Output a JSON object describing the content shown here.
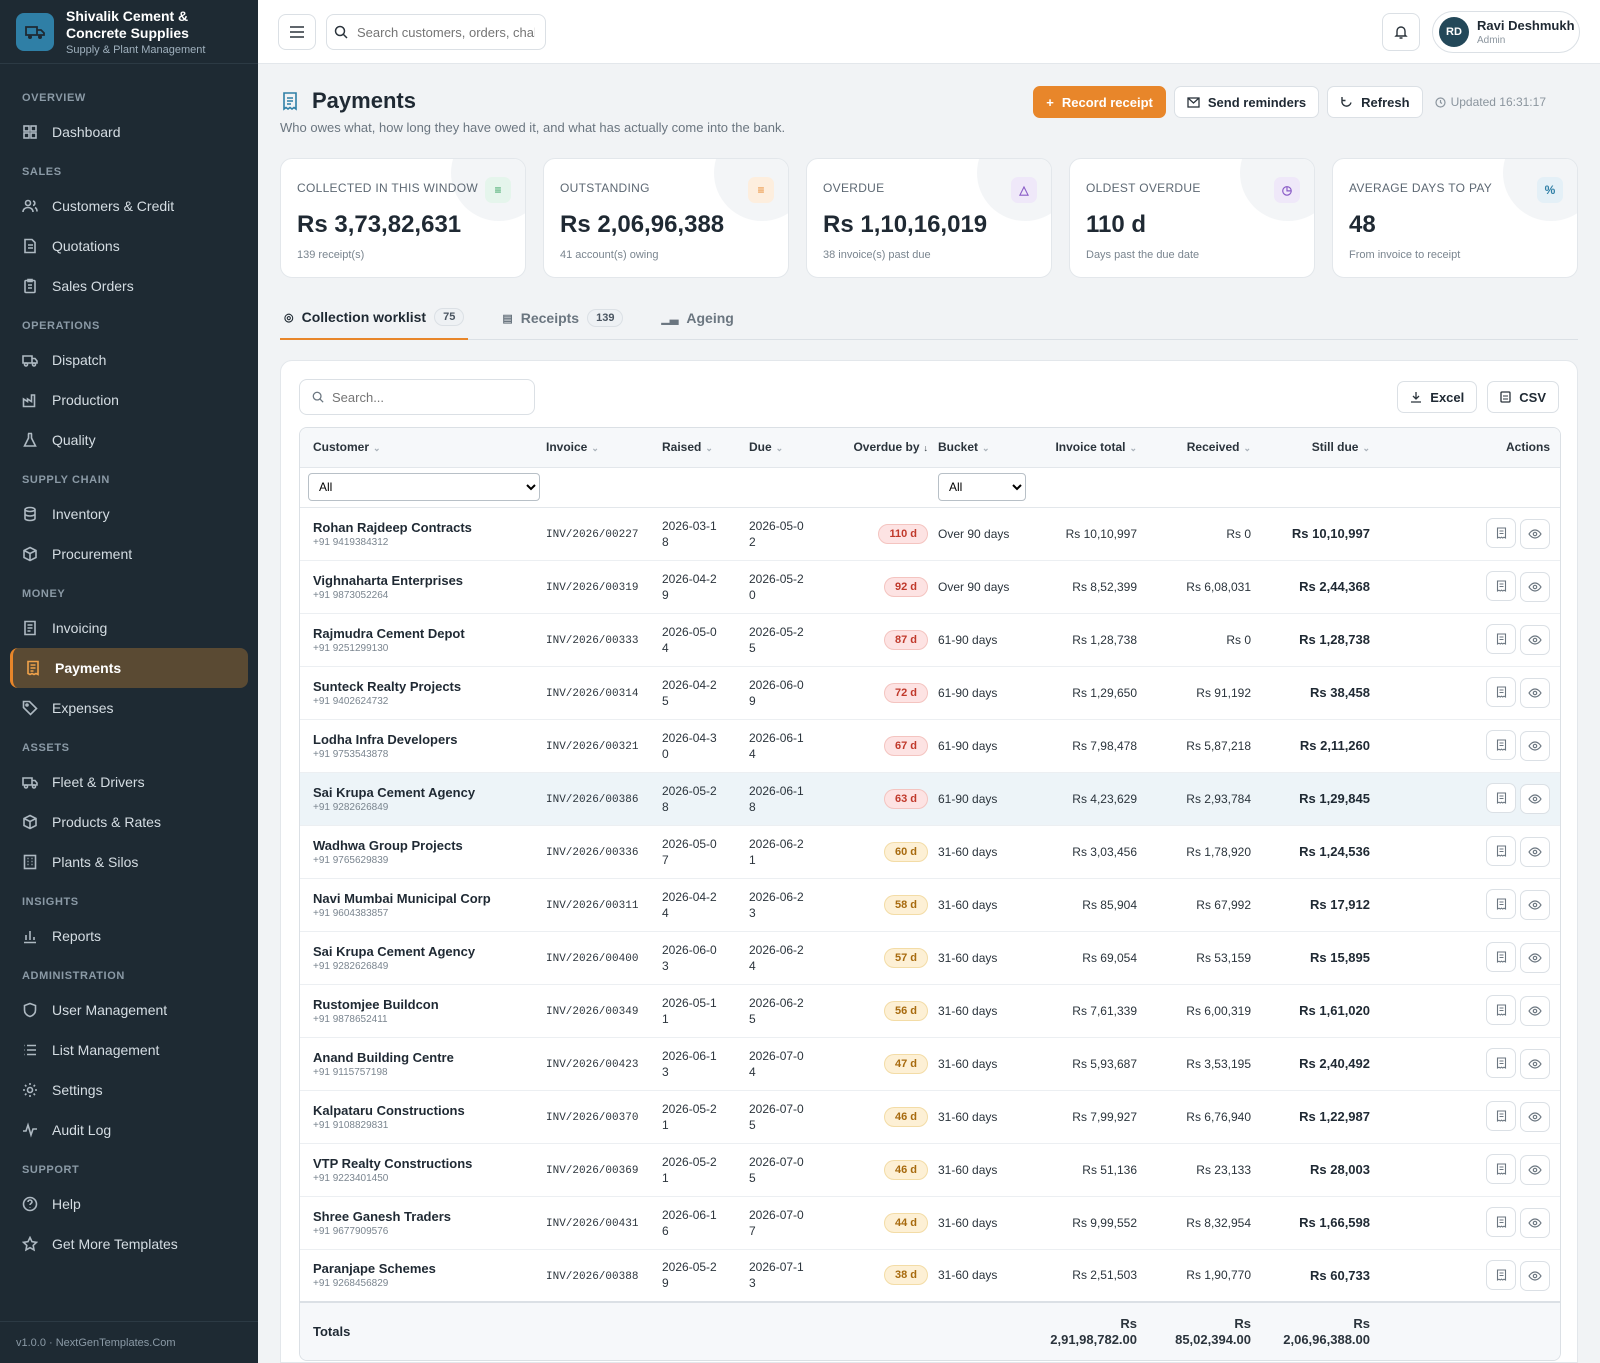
{
  "brand": {
    "name": "Shivalik Cement & Concrete Supplies",
    "tagline": "Supply & Plant Management"
  },
  "sidebar": [
    {
      "section": "OVERVIEW",
      "items": [
        {
          "label": "Dashboard",
          "icon": "dashboard-icon"
        }
      ]
    },
    {
      "section": "SALES",
      "items": [
        {
          "label": "Customers & Credit",
          "icon": "users-icon"
        },
        {
          "label": "Quotations",
          "icon": "document-icon"
        },
        {
          "label": "Sales Orders",
          "icon": "clipboard-icon"
        }
      ]
    },
    {
      "section": "OPERATIONS",
      "items": [
        {
          "label": "Dispatch",
          "icon": "truck-icon"
        },
        {
          "label": "Production",
          "icon": "factory-icon"
        },
        {
          "label": "Quality",
          "icon": "flask-icon"
        }
      ]
    },
    {
      "section": "SUPPLY CHAIN",
      "items": [
        {
          "label": "Inventory",
          "icon": "database-icon"
        },
        {
          "label": "Procurement",
          "icon": "box-icon"
        }
      ]
    },
    {
      "section": "MONEY",
      "items": [
        {
          "label": "Invoicing",
          "icon": "invoice-icon"
        },
        {
          "label": "Payments",
          "icon": "receipt-icon",
          "active": true
        },
        {
          "label": "Expenses",
          "icon": "tag-icon"
        }
      ]
    },
    {
      "section": "ASSETS",
      "items": [
        {
          "label": "Fleet & Drivers",
          "icon": "truck-icon"
        },
        {
          "label": "Products & Rates",
          "icon": "box-icon"
        },
        {
          "label": "Plants & Silos",
          "icon": "building-icon"
        }
      ]
    },
    {
      "section": "INSIGHTS",
      "items": [
        {
          "label": "Reports",
          "icon": "bar-chart-icon"
        }
      ]
    },
    {
      "section": "ADMINISTRATION",
      "items": [
        {
          "label": "User Management",
          "icon": "shield-icon"
        },
        {
          "label": "List Management",
          "icon": "list-icon"
        },
        {
          "label": "Settings",
          "icon": "gear-icon"
        },
        {
          "label": "Audit Log",
          "icon": "activity-icon"
        }
      ]
    },
    {
      "section": "SUPPORT",
      "items": [
        {
          "label": "Help",
          "icon": "help-icon"
        },
        {
          "label": "Get More Templates",
          "icon": "star-icon"
        }
      ]
    }
  ],
  "version": "v1.0.0 · NextGenTemplates.Com",
  "topbar": {
    "search_placeholder": "Search customers, orders, chal",
    "user_initials": "RD",
    "user_name": "Ravi Deshmukh",
    "user_role": "Admin"
  },
  "page": {
    "title": "Payments",
    "subtitle": "Who owes what, how long they have owed it, and what has actually come into the bank.",
    "record_receipt": "Record receipt",
    "send_reminders": "Send reminders",
    "refresh": "Refresh",
    "updated": "Updated 16:31:17"
  },
  "kpis": [
    {
      "label": "COLLECTED IN THIS WINDOW",
      "value": "Rs 3,73,82,631",
      "sub": "139 receipt(s)",
      "icon": "receipt-icon",
      "color": "#2f9e5b",
      "bg": "#e5f5ec"
    },
    {
      "label": "OUTSTANDING",
      "value": "Rs 2,06,96,388",
      "sub": "41 account(s) owing",
      "icon": "receipt-icon",
      "color": "#e8862a",
      "bg": "#fdeede"
    },
    {
      "label": "OVERDUE",
      "value": "Rs 1,10,16,019",
      "sub": "38 invoice(s) past due",
      "icon": "alert-icon",
      "color": "#8a5cc7",
      "bg": "#efe8f9"
    },
    {
      "label": "OLDEST OVERDUE",
      "value": "110 d",
      "sub": "Days past the due date",
      "icon": "clock-icon",
      "color": "#8a5cc7",
      "bg": "#efe8f9"
    },
    {
      "label": "AVERAGE DAYS TO PAY",
      "value": "48",
      "sub": "From invoice to receipt",
      "icon": "percent-icon",
      "color": "#2f7fa6",
      "bg": "#e4f0f7"
    }
  ],
  "tabs": [
    {
      "label": "Collection worklist",
      "count": "75",
      "icon": "target-icon",
      "active": true
    },
    {
      "label": "Receipts",
      "count": "139",
      "icon": "receipt-icon"
    },
    {
      "label": "Ageing",
      "count": "",
      "icon": "bar-chart-icon"
    }
  ],
  "table": {
    "search_placeholder": "Search...",
    "excel": "Excel",
    "csv": "CSV",
    "columns": [
      "Customer",
      "Invoice",
      "Raised",
      "Due",
      "Overdue by",
      "Bucket",
      "Invoice total",
      "Received",
      "Still due",
      "Actions"
    ],
    "filter_customer": "All",
    "filter_bucket": "All",
    "rows": [
      {
        "customer": "Rohan Rajdeep Contracts",
        "phone": "+91 9419384312",
        "invoice": "INV/2026/00227",
        "raised": "2026-03-18",
        "due": "2026-05-02",
        "overdue": "110 d",
        "bucket": "Over 90 days",
        "total": "Rs 10,10,997",
        "received": "Rs 0",
        "still": "Rs 10,10,997"
      },
      {
        "customer": "Vighnaharta Enterprises",
        "phone": "+91 9873052264",
        "invoice": "INV/2026/00319",
        "raised": "2026-04-29",
        "due": "2026-05-20",
        "overdue": "92 d",
        "bucket": "Over 90 days",
        "total": "Rs 8,52,399",
        "received": "Rs 6,08,031",
        "still": "Rs 2,44,368"
      },
      {
        "customer": "Rajmudra Cement Depot",
        "phone": "+91 9251299130",
        "invoice": "INV/2026/00333",
        "raised": "2026-05-04",
        "due": "2026-05-25",
        "overdue": "87 d",
        "bucket": "61-90 days",
        "total": "Rs 1,28,738",
        "received": "Rs 0",
        "still": "Rs 1,28,738"
      },
      {
        "customer": "Sunteck Realty Projects",
        "phone": "+91 9402624732",
        "invoice": "INV/2026/00314",
        "raised": "2026-04-25",
        "due": "2026-06-09",
        "overdue": "72 d",
        "bucket": "61-90 days",
        "total": "Rs 1,29,650",
        "received": "Rs 91,192",
        "still": "Rs 38,458"
      },
      {
        "customer": "Lodha Infra Developers",
        "phone": "+91 9753543878",
        "invoice": "INV/2026/00321",
        "raised": "2026-04-30",
        "due": "2026-06-14",
        "overdue": "67 d",
        "bucket": "61-90 days",
        "total": "Rs 7,98,478",
        "received": "Rs 5,87,218",
        "still": "Rs 2,11,260"
      },
      {
        "customer": "Sai Krupa Cement Agency",
        "phone": "+91 9282626849",
        "invoice": "INV/2026/00386",
        "raised": "2026-05-28",
        "due": "2026-06-18",
        "overdue": "63 d",
        "bucket": "61-90 days",
        "total": "Rs 4,23,629",
        "received": "Rs 2,93,784",
        "still": "Rs 1,29,845",
        "highlight": true
      },
      {
        "customer": "Wadhwa Group Projects",
        "phone": "+91 9765629839",
        "invoice": "INV/2026/00336",
        "raised": "2026-05-07",
        "due": "2026-06-21",
        "overdue": "60 d",
        "bucket": "31-60 days",
        "total": "Rs 3,03,456",
        "received": "Rs 1,78,920",
        "still": "Rs 1,24,536"
      },
      {
        "customer": "Navi Mumbai Municipal Corp",
        "phone": "+91 9604383857",
        "invoice": "INV/2026/00311",
        "raised": "2026-04-24",
        "due": "2026-06-23",
        "overdue": "58 d",
        "bucket": "31-60 days",
        "total": "Rs 85,904",
        "received": "Rs 67,992",
        "still": "Rs 17,912"
      },
      {
        "customer": "Sai Krupa Cement Agency",
        "phone": "+91 9282626849",
        "invoice": "INV/2026/00400",
        "raised": "2026-06-03",
        "due": "2026-06-24",
        "overdue": "57 d",
        "bucket": "31-60 days",
        "total": "Rs 69,054",
        "received": "Rs 53,159",
        "still": "Rs 15,895"
      },
      {
        "customer": "Rustomjee Buildcon",
        "phone": "+91 9878652411",
        "invoice": "INV/2026/00349",
        "raised": "2026-05-11",
        "due": "2026-06-25",
        "overdue": "56 d",
        "bucket": "31-60 days",
        "total": "Rs 7,61,339",
        "received": "Rs 6,00,319",
        "still": "Rs 1,61,020"
      },
      {
        "customer": "Anand Building Centre",
        "phone": "+91 9115757198",
        "invoice": "INV/2026/00423",
        "raised": "2026-06-13",
        "due": "2026-07-04",
        "overdue": "47 d",
        "bucket": "31-60 days",
        "total": "Rs 5,93,687",
        "received": "Rs 3,53,195",
        "still": "Rs 2,40,492"
      },
      {
        "customer": "Kalpataru Constructions",
        "phone": "+91 9108829831",
        "invoice": "INV/2026/00370",
        "raised": "2026-05-21",
        "due": "2026-07-05",
        "overdue": "46 d",
        "bucket": "31-60 days",
        "total": "Rs 7,99,927",
        "received": "Rs 6,76,940",
        "still": "Rs 1,22,987"
      },
      {
        "customer": "VTP Realty Constructions",
        "phone": "+91 9223401450",
        "invoice": "INV/2026/00369",
        "raised": "2026-05-21",
        "due": "2026-07-05",
        "overdue": "46 d",
        "bucket": "31-60 days",
        "total": "Rs 51,136",
        "received": "Rs 23,133",
        "still": "Rs 28,003"
      },
      {
        "customer": "Shree Ganesh Traders",
        "phone": "+91 9677909576",
        "invoice": "INV/2026/00431",
        "raised": "2026-06-16",
        "due": "2026-07-07",
        "overdue": "44 d",
        "bucket": "31-60 days",
        "total": "Rs 9,99,552",
        "received": "Rs 8,32,954",
        "still": "Rs 1,66,598"
      },
      {
        "customer": "Paranjape Schemes",
        "phone": "+91 9268456829",
        "invoice": "INV/2026/00388",
        "raised": "2026-05-29",
        "due": "2026-07-13",
        "overdue": "38 d",
        "bucket": "31-60 days",
        "total": "Rs 2,51,503",
        "received": "Rs 1,90,770",
        "still": "Rs 60,733"
      }
    ],
    "totals": {
      "label": "Totals",
      "total": "Rs 2,91,98,782.00",
      "received": "Rs 85,02,394.00",
      "still": "Rs 2,06,96,388.00"
    }
  },
  "colors": {
    "accent": "#e8862a",
    "sidebar": "#1e2a33",
    "badge_red_bg": "#fde3e3",
    "badge_red_fg": "#c0392b",
    "badge_amber_bg": "#fdf0d5",
    "badge_amber_fg": "#a76a0e"
  }
}
